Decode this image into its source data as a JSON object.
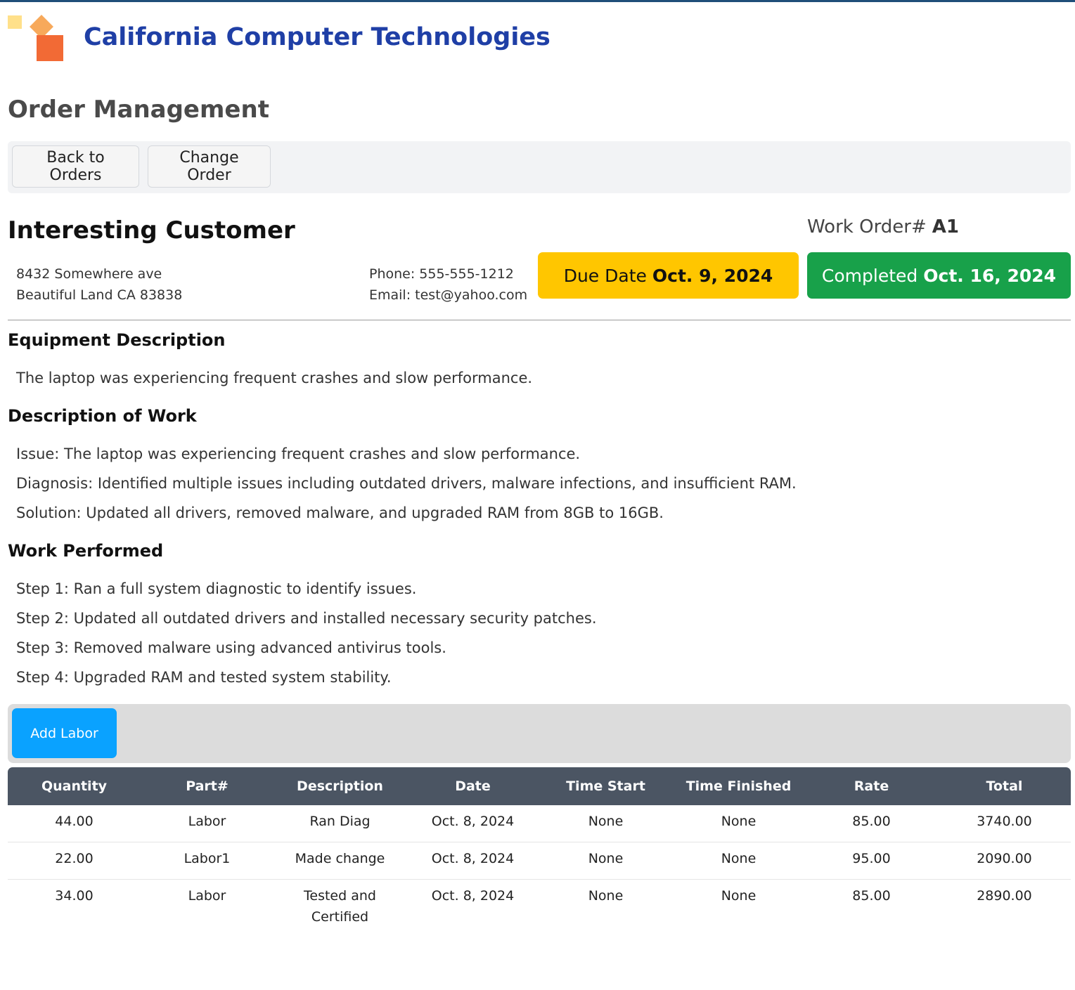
{
  "brand": {
    "name": "California Computer Technologies"
  },
  "page": {
    "title": "Order Management"
  },
  "toolbar": {
    "back_label": "Back to Orders",
    "change_label": "Change Order"
  },
  "customer": {
    "name": "Interesting Customer",
    "address_line1": "8432 Somewhere ave",
    "address_line2": "Beautiful Land CA 83838",
    "phone": "Phone: 555-555-1212",
    "email": "Email: test@yahoo.com"
  },
  "work_order": {
    "label": "Work Order#",
    "number": "A1"
  },
  "due": {
    "label": "Due Date",
    "date": "Oct. 9, 2024",
    "color": "#ffc600"
  },
  "completed": {
    "label": "Completed",
    "date": "Oct. 16, 2024",
    "color": "#18a14a"
  },
  "equipment": {
    "heading": "Equipment Description",
    "text": "The laptop was experiencing frequent crashes and slow performance."
  },
  "work_description": {
    "heading": "Description of Work",
    "lines": [
      "Issue: The laptop was experiencing frequent crashes and slow performance.",
      "Diagnosis: Identified multiple issues including outdated drivers, malware infections, and insufficient RAM.",
      "Solution: Updated all drivers, removed malware, and upgraded RAM from 8GB to 16GB."
    ]
  },
  "work_performed": {
    "heading": "Work Performed",
    "steps": [
      "Step 1: Ran a full system diagnostic to identify issues.",
      "Step 2: Updated all outdated drivers and installed necessary security patches.",
      "Step 3: Removed malware using advanced antivirus tools.",
      "Step 4: Upgraded RAM and tested system stability."
    ]
  },
  "labor": {
    "add_label": "Add Labor",
    "columns": [
      "Quantity",
      "Part#",
      "Description",
      "Date",
      "Time Start",
      "Time Finished",
      "Rate",
      "Total"
    ],
    "rows": [
      [
        "44.00",
        "Labor",
        "Ran Diag",
        "Oct. 8, 2024",
        "None",
        "None",
        "85.00",
        "3740.00"
      ],
      [
        "22.00",
        "Labor1",
        "Made change",
        "Oct. 8, 2024",
        "None",
        "None",
        "95.00",
        "2090.00"
      ],
      [
        "34.00",
        "Labor",
        "Tested and Certified",
        "Oct. 8, 2024",
        "None",
        "None",
        "85.00",
        "2890.00"
      ]
    ]
  }
}
